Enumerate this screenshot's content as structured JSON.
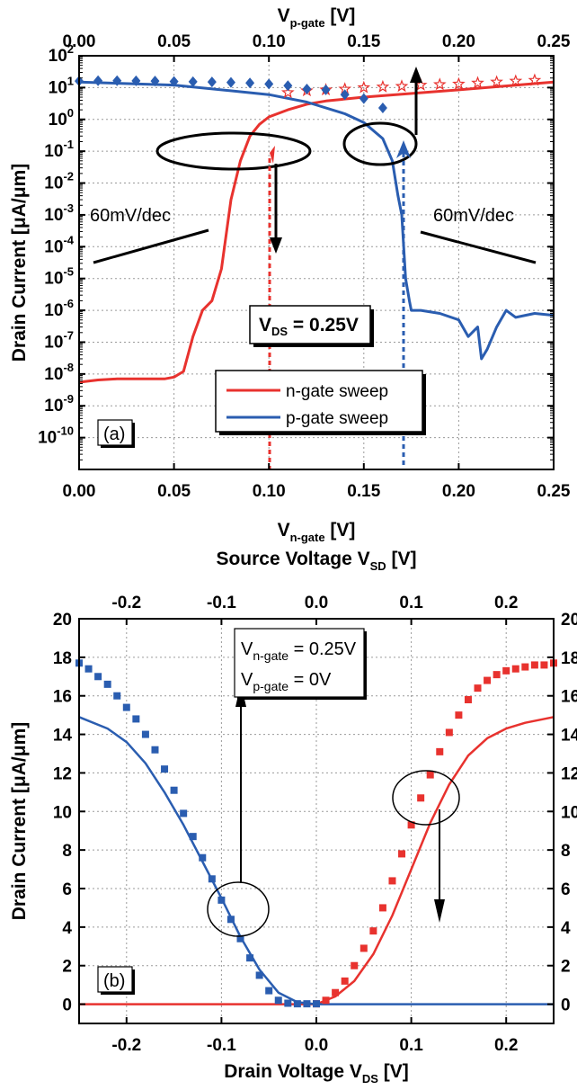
{
  "chart_data": [
    {
      "panel_label": "(a)",
      "type": "line",
      "x_bottom_label": "V",
      "x_bottom_sub": "n-gate",
      "x_bottom_unit": " [V]",
      "x_top_label": "V",
      "x_top_sub": "p-gate",
      "x_top_unit": " [V]",
      "ylabel": "Drain Current [μA/μm]",
      "xlim": [
        0,
        0.25
      ],
      "ylim_log10": [
        -11,
        2
      ],
      "log_y": true,
      "grid": true,
      "x_ticks": [
        "0.00",
        "0.05",
        "0.10",
        "0.15",
        "0.20",
        "0.25"
      ],
      "y_ticks": [
        {
          "base": "10",
          "exp": "2"
        },
        {
          "base": "10",
          "exp": "1"
        },
        {
          "base": "10",
          "exp": "0"
        },
        {
          "base": "10",
          "exp": "-1"
        },
        {
          "base": "10",
          "exp": "-2"
        },
        {
          "base": "10",
          "exp": "-3"
        },
        {
          "base": "10",
          "exp": "-4"
        },
        {
          "base": "10",
          "exp": "-5"
        },
        {
          "base": "10",
          "exp": "-6"
        },
        {
          "base": "10",
          "exp": "-7"
        },
        {
          "base": "10",
          "exp": "-8"
        },
        {
          "base": "10",
          "exp": "-9"
        },
        {
          "base": "10",
          "exp": "-10"
        }
      ],
      "legend": [
        {
          "name": "n-gate sweep",
          "color": "#e8322e"
        },
        {
          "name": "p-gate sweep",
          "color": "#2a5db0"
        }
      ],
      "legend_position": "lower-center",
      "annotations": {
        "slope_left": "60mV/dec",
        "slope_right": "60mV/dec",
        "vds_prefix": "V",
        "vds_sub": "DS",
        "vds_value": " = 0.25V"
      },
      "series": [
        {
          "name": "n-gate sweep",
          "color": "#e8322e",
          "style": "line",
          "x": [
            0.0,
            0.01,
            0.02,
            0.03,
            0.04,
            0.045,
            0.05,
            0.055,
            0.06,
            0.065,
            0.07,
            0.075,
            0.08,
            0.085,
            0.09,
            0.095,
            0.1,
            0.11,
            0.12,
            0.13,
            0.15,
            0.17,
            0.2,
            0.25
          ],
          "y": [
            5.5e-09,
            6.5e-09,
            7e-09,
            7e-09,
            7e-09,
            7e-09,
            8e-09,
            1.2e-08,
            1.5e-07,
            1e-06,
            2e-06,
            2e-05,
            0.003,
            0.05,
            0.3,
            0.7,
            1.2,
            2.0,
            3.0,
            3.8,
            5.0,
            6.2,
            8.5,
            15.0
          ]
        },
        {
          "name": "p-gate sweep",
          "color": "#2a5db0",
          "style": "line",
          "x": [
            0.0,
            0.05,
            0.1,
            0.12,
            0.14,
            0.15,
            0.16,
            0.165,
            0.168,
            0.17,
            0.172,
            0.174,
            0.175,
            0.18,
            0.19,
            0.2,
            0.205,
            0.21,
            0.212,
            0.215,
            0.22,
            0.225,
            0.23,
            0.24,
            0.25
          ],
          "y": [
            15,
            12,
            6,
            3.5,
            1.5,
            0.8,
            0.25,
            0.05,
            0.004,
            0.001,
            1e-05,
            2e-06,
            1e-06,
            1e-06,
            8e-07,
            5e-07,
            1.5e-07,
            3e-07,
            3e-08,
            6e-08,
            3e-07,
            1e-06,
            6e-07,
            8e-07,
            7e-07
          ]
        },
        {
          "name": "n-gate data (stars)",
          "color": "#e8322e",
          "style": "star",
          "x": [
            0.11,
            0.12,
            0.13,
            0.14,
            0.15,
            0.16,
            0.17,
            0.18,
            0.19,
            0.2,
            0.21,
            0.22,
            0.23,
            0.24
          ],
          "y": [
            7,
            8,
            8.5,
            9,
            10,
            10.5,
            11,
            12,
            12.5,
            13,
            14,
            15,
            16,
            17
          ]
        },
        {
          "name": "p-gate data (diamonds)",
          "color": "#2a5db0",
          "style": "diamond",
          "x": [
            0.0,
            0.01,
            0.02,
            0.03,
            0.04,
            0.05,
            0.06,
            0.07,
            0.08,
            0.09,
            0.1,
            0.11,
            0.12,
            0.13,
            0.14,
            0.15,
            0.16
          ],
          "y": [
            16,
            16.5,
            16.5,
            16.3,
            16,
            15.5,
            15.3,
            15,
            14.5,
            14,
            13,
            11.5,
            9,
            8.5,
            6,
            4.5,
            2.3
          ]
        }
      ]
    },
    {
      "panel_label": "(b)",
      "type": "line",
      "x_top_label": "Source Voltage V",
      "x_top_sub": "SD",
      "x_top_unit": " [V]",
      "x_bottom_label": "Drain Voltage V",
      "x_bottom_sub": "DS",
      "x_bottom_unit": " [V]",
      "ylabel": "Drain Current [μA/μm]",
      "xlim": [
        -0.25,
        0.25
      ],
      "ylim": [
        -1,
        20
      ],
      "grid": true,
      "x_ticks": [
        "-0.2",
        "-0.1",
        "0.0",
        "0.1",
        "0.2"
      ],
      "y_ticks": [
        "0",
        "2",
        "4",
        "6",
        "8",
        "10",
        "12",
        "14",
        "16",
        "18",
        "20"
      ],
      "y_right_ticks": [
        "0",
        "2",
        "4",
        "6",
        "8",
        "10",
        "12",
        "14",
        "16",
        "18",
        "20"
      ],
      "annotations": {
        "line1_prefix": "V",
        "line1_sub": "n-gate",
        "line1_value": " = 0.25V",
        "line2_prefix": "V",
        "line2_sub": "p-gate",
        "line2_value": " = 0V"
      },
      "series": [
        {
          "name": "n-gate sweep",
          "color": "#e8322e",
          "style": "line",
          "x": [
            -0.25,
            -0.2,
            -0.1,
            0.0,
            0.02,
            0.04,
            0.06,
            0.08,
            0.1,
            0.12,
            0.14,
            0.16,
            0.18,
            0.2,
            0.22,
            0.25
          ],
          "y": [
            0,
            0,
            0,
            0,
            0.4,
            1.2,
            2.6,
            4.6,
            7.0,
            9.4,
            11.4,
            12.9,
            13.8,
            14.3,
            14.6,
            14.9
          ]
        },
        {
          "name": "p-gate sweep",
          "color": "#2a5db0",
          "style": "line",
          "x": [
            -0.25,
            -0.22,
            -0.2,
            -0.18,
            -0.16,
            -0.14,
            -0.12,
            -0.1,
            -0.08,
            -0.06,
            -0.04,
            -0.02,
            0.0,
            0.25
          ],
          "y": [
            14.9,
            14.3,
            13.6,
            12.5,
            11.0,
            9.3,
            7.4,
            5.5,
            3.5,
            1.8,
            0.6,
            0.1,
            0,
            0
          ]
        },
        {
          "name": "n-gate data (squares)",
          "color": "#e8322e",
          "style": "square",
          "x": [
            0.0,
            0.01,
            0.02,
            0.03,
            0.04,
            0.05,
            0.06,
            0.07,
            0.08,
            0.09,
            0.1,
            0.11,
            0.12,
            0.13,
            0.14,
            0.15,
            0.16,
            0.17,
            0.18,
            0.19,
            0.2,
            0.21,
            0.22,
            0.23,
            0.24,
            0.25
          ],
          "y": [
            0.02,
            0.2,
            0.6,
            1.2,
            2.0,
            2.9,
            3.8,
            5.0,
            6.4,
            7.8,
            9.3,
            10.7,
            11.9,
            13.1,
            14.1,
            15.0,
            15.8,
            16.4,
            16.8,
            17.1,
            17.3,
            17.4,
            17.5,
            17.6,
            17.6,
            17.7
          ]
        },
        {
          "name": "p-gate data (squares)",
          "color": "#2a5db0",
          "style": "square",
          "x": [
            -0.25,
            -0.24,
            -0.23,
            -0.22,
            -0.21,
            -0.2,
            -0.19,
            -0.18,
            -0.17,
            -0.16,
            -0.15,
            -0.14,
            -0.13,
            -0.12,
            -0.11,
            -0.1,
            -0.09,
            -0.08,
            -0.07,
            -0.06,
            -0.05,
            -0.04,
            -0.03,
            -0.02,
            -0.01,
            0.0
          ],
          "y": [
            17.7,
            17.4,
            17.0,
            16.6,
            16.0,
            15.4,
            14.8,
            14.0,
            13.2,
            12.2,
            11.1,
            9.9,
            8.7,
            7.6,
            6.5,
            5.4,
            4.4,
            3.4,
            2.4,
            1.5,
            0.7,
            0.2,
            0.05,
            0.02,
            0.02,
            0.02
          ]
        }
      ]
    }
  ]
}
